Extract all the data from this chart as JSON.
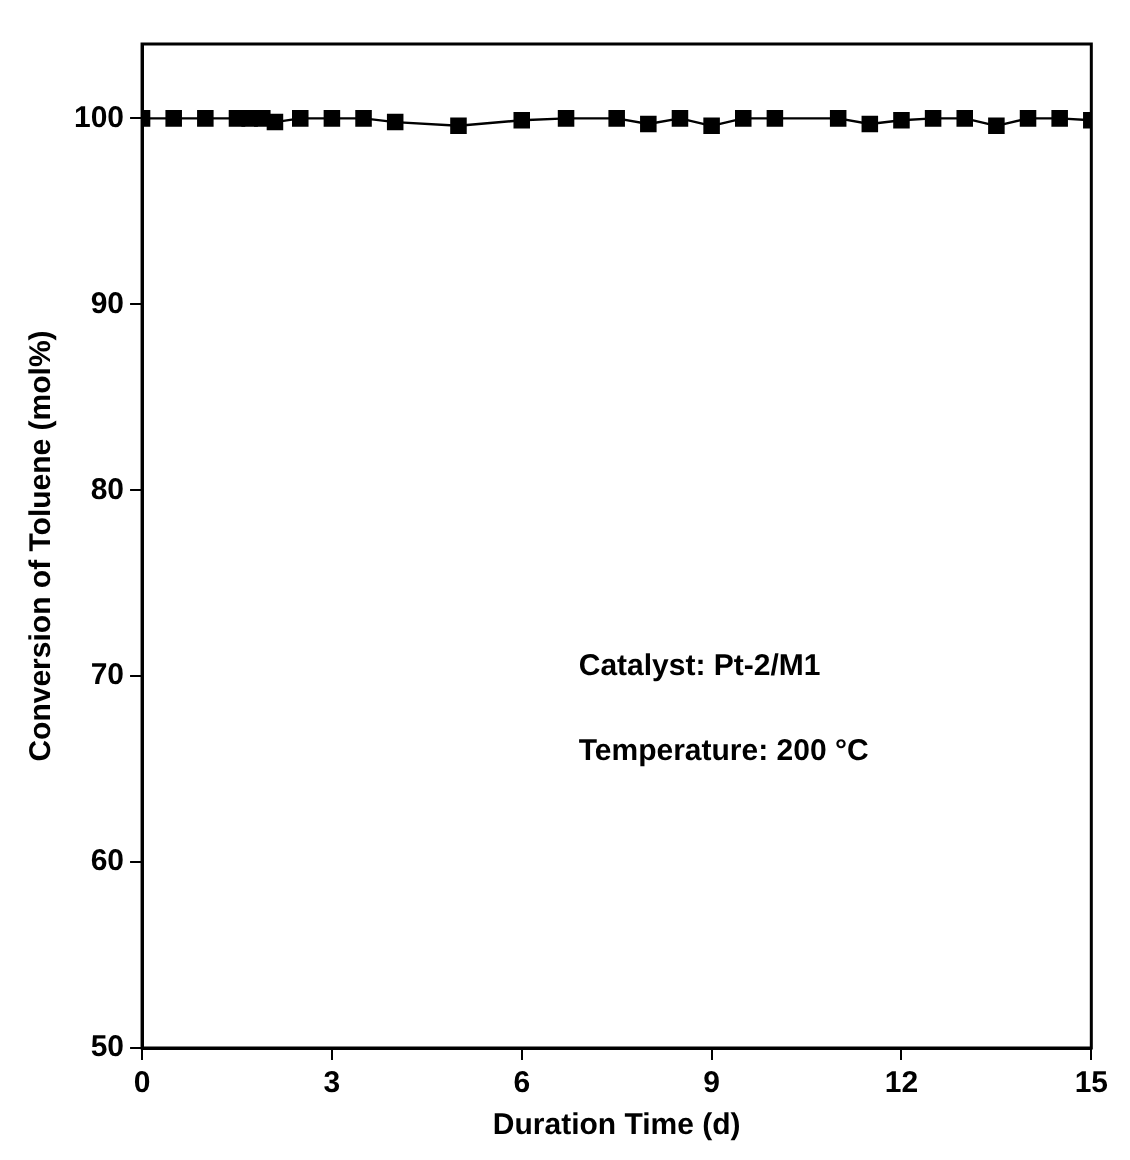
{
  "chart_data": {
    "type": "line",
    "xlabel": "Duration Time (d)",
    "ylabel": "Conversion of Toluene (mol%)",
    "x": [
      0,
      0.5,
      1,
      1.5,
      1.7,
      1.9,
      2.1,
      2.5,
      3,
      3.5,
      4,
      5,
      6,
      6.7,
      7.5,
      8,
      8.5,
      9,
      9.5,
      10,
      11,
      11.5,
      12,
      12.5,
      13,
      13.5,
      14,
      14.5,
      15
    ],
    "series": [
      {
        "color": "#000000",
        "values": [
          100,
          100,
          100,
          100,
          100,
          100,
          99.8,
          100,
          100,
          100,
          99.8,
          99.6,
          99.9,
          100,
          100,
          99.7,
          100,
          99.6,
          100,
          100,
          100,
          99.7,
          99.9,
          100,
          100,
          99.6,
          100,
          100,
          99.9
        ]
      }
    ],
    "xlim": [
      0,
      15
    ],
    "xticks": [
      0,
      3,
      6,
      9,
      12,
      15
    ],
    "ylim": [
      50,
      104
    ],
    "yticks": [
      50,
      60,
      70,
      80,
      90,
      100
    ],
    "marker": "square",
    "line_style": "solid",
    "grid": false,
    "legend": false,
    "annotations": [
      "Catalyst: Pt-2/M1",
      "Temperature: 200 °C"
    ]
  }
}
